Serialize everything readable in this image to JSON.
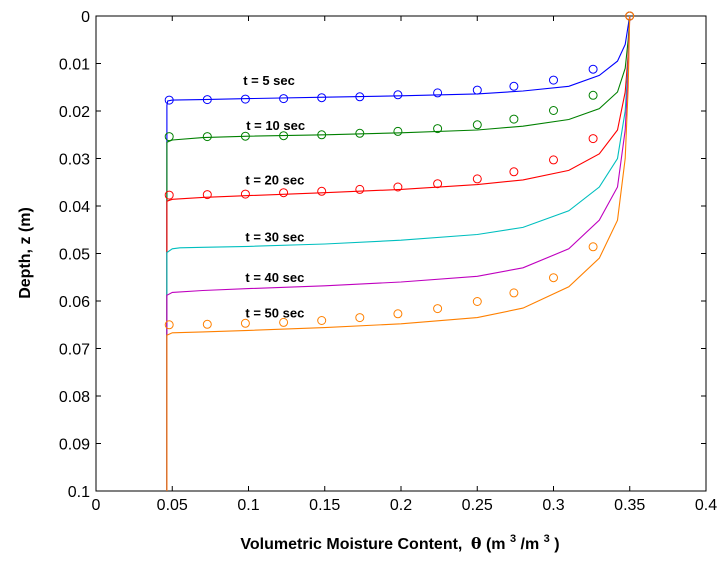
{
  "chart_data": {
    "type": "line",
    "title": "",
    "xlabel": "Volumetric Moisture Content,",
    "xlabel_theta": "θ",
    "xlabel_unit_open": " (m",
    "xlabel_sup1": "3",
    "xlabel_unit_mid": "/m",
    "xlabel_sup2": "3",
    "xlabel_close": ")",
    "ylabel": "Depth, z (m)",
    "xlim": [
      0,
      0.4
    ],
    "ylim": [
      0,
      0.1
    ],
    "y_reversed": true,
    "grid": false,
    "x_ticks": [
      0,
      0.05,
      0.1,
      0.15,
      0.2,
      0.25,
      0.3,
      0.35,
      0.4
    ],
    "x_tick_labels": [
      "0",
      "0.05",
      "0.1",
      "0.15",
      "0.2",
      "0.25",
      "0.3",
      "0.35",
      "0.4"
    ],
    "y_ticks": [
      0,
      0.01,
      0.02,
      0.03,
      0.04,
      0.05,
      0.06,
      0.07,
      0.08,
      0.09,
      0.1
    ],
    "y_tick_labels": [
      "0",
      "0.01",
      "0.02",
      "0.03",
      "0.04",
      "0.05",
      "0.06",
      "0.07",
      "0.08",
      "0.09",
      "0.1"
    ],
    "series": [
      {
        "name": "t =  5 sec",
        "color": "#0000ff",
        "curve": [
          [
            0.35,
            0
          ],
          [
            0.349,
            0.002
          ],
          [
            0.347,
            0.006
          ],
          [
            0.342,
            0.0095
          ],
          [
            0.33,
            0.0125
          ],
          [
            0.31,
            0.0148
          ],
          [
            0.28,
            0.0158
          ],
          [
            0.25,
            0.0164
          ],
          [
            0.2,
            0.0168
          ],
          [
            0.15,
            0.0171
          ],
          [
            0.1,
            0.0174
          ],
          [
            0.07,
            0.0176
          ],
          [
            0.05,
            0.0177
          ],
          [
            0.047,
            0.0179
          ],
          [
            0.0465,
            0.0188
          ],
          [
            0.0465,
            0.1
          ]
        ],
        "points": [
          [
            0.35,
            0
          ],
          [
            0.326,
            0.0112
          ],
          [
            0.3,
            0.0135
          ],
          [
            0.274,
            0.0148
          ],
          [
            0.25,
            0.0156
          ],
          [
            0.224,
            0.0162
          ],
          [
            0.198,
            0.0166
          ],
          [
            0.173,
            0.017
          ],
          [
            0.148,
            0.0172
          ],
          [
            0.123,
            0.0174
          ],
          [
            0.098,
            0.0175
          ],
          [
            0.073,
            0.0176
          ],
          [
            0.048,
            0.0177
          ]
        ]
      },
      {
        "name": "t = 10 sec",
        "color": "#008000",
        "curve": [
          [
            0.35,
            0
          ],
          [
            0.349,
            0.005
          ],
          [
            0.347,
            0.011
          ],
          [
            0.342,
            0.016
          ],
          [
            0.33,
            0.0195
          ],
          [
            0.31,
            0.0218
          ],
          [
            0.28,
            0.0232
          ],
          [
            0.25,
            0.024
          ],
          [
            0.2,
            0.0246
          ],
          [
            0.15,
            0.025
          ],
          [
            0.1,
            0.0253
          ],
          [
            0.07,
            0.0256
          ],
          [
            0.05,
            0.0261
          ],
          [
            0.0465,
            0.0266
          ],
          [
            0.0465,
            0.1
          ]
        ],
        "points": [
          [
            0.35,
            0
          ],
          [
            0.326,
            0.0167
          ],
          [
            0.3,
            0.0199
          ],
          [
            0.274,
            0.0217
          ],
          [
            0.25,
            0.0229
          ],
          [
            0.224,
            0.0237
          ],
          [
            0.198,
            0.0243
          ],
          [
            0.173,
            0.0247
          ],
          [
            0.148,
            0.025
          ],
          [
            0.123,
            0.0252
          ],
          [
            0.098,
            0.0253
          ],
          [
            0.073,
            0.0254
          ],
          [
            0.048,
            0.0254
          ]
        ]
      },
      {
        "name": "t = 20 sec",
        "color": "#ff0000",
        "curve": [
          [
            0.35,
            0
          ],
          [
            0.349,
            0.008
          ],
          [
            0.347,
            0.016
          ],
          [
            0.342,
            0.024
          ],
          [
            0.33,
            0.029
          ],
          [
            0.31,
            0.0325
          ],
          [
            0.28,
            0.0345
          ],
          [
            0.25,
            0.0355
          ],
          [
            0.2,
            0.0365
          ],
          [
            0.15,
            0.0372
          ],
          [
            0.1,
            0.0378
          ],
          [
            0.07,
            0.0382
          ],
          [
            0.05,
            0.0386
          ],
          [
            0.0465,
            0.039
          ],
          [
            0.0465,
            0.1
          ]
        ],
        "points": [
          [
            0.35,
            0
          ],
          [
            0.326,
            0.0258
          ],
          [
            0.3,
            0.0303
          ],
          [
            0.274,
            0.0328
          ],
          [
            0.25,
            0.0343
          ],
          [
            0.224,
            0.0353
          ],
          [
            0.198,
            0.036
          ],
          [
            0.173,
            0.0365
          ],
          [
            0.148,
            0.0369
          ],
          [
            0.123,
            0.0372
          ],
          [
            0.098,
            0.0375
          ],
          [
            0.073,
            0.0376
          ],
          [
            0.048,
            0.0377
          ]
        ]
      },
      {
        "name": "t = 30 sec",
        "color": "#00bfbf",
        "curve": [
          [
            0.35,
            0
          ],
          [
            0.349,
            0.01
          ],
          [
            0.347,
            0.02
          ],
          [
            0.342,
            0.03
          ],
          [
            0.33,
            0.036
          ],
          [
            0.31,
            0.041
          ],
          [
            0.28,
            0.0445
          ],
          [
            0.25,
            0.046
          ],
          [
            0.2,
            0.0472
          ],
          [
            0.15,
            0.048
          ],
          [
            0.1,
            0.0485
          ],
          [
            0.07,
            0.0487
          ],
          [
            0.055,
            0.0488
          ],
          [
            0.05,
            0.049
          ],
          [
            0.0465,
            0.0498
          ],
          [
            0.0465,
            0.1
          ]
        ],
        "points": []
      },
      {
        "name": "t = 40 sec",
        "color": "#bf00bf",
        "curve": [
          [
            0.35,
            0
          ],
          [
            0.349,
            0.012
          ],
          [
            0.347,
            0.024
          ],
          [
            0.342,
            0.036
          ],
          [
            0.33,
            0.043
          ],
          [
            0.31,
            0.049
          ],
          [
            0.28,
            0.053
          ],
          [
            0.25,
            0.0548
          ],
          [
            0.2,
            0.056
          ],
          [
            0.15,
            0.0568
          ],
          [
            0.1,
            0.0574
          ],
          [
            0.07,
            0.0578
          ],
          [
            0.05,
            0.0582
          ],
          [
            0.0465,
            0.0588
          ],
          [
            0.0465,
            0.1
          ]
        ],
        "points": []
      },
      {
        "name": "t = 50 sec",
        "color": "#ff8000",
        "curve": [
          [
            0.35,
            0
          ],
          [
            0.349,
            0.015
          ],
          [
            0.347,
            0.03
          ],
          [
            0.342,
            0.043
          ],
          [
            0.33,
            0.051
          ],
          [
            0.31,
            0.057
          ],
          [
            0.28,
            0.0615
          ],
          [
            0.25,
            0.0635
          ],
          [
            0.2,
            0.0648
          ],
          [
            0.15,
            0.0656
          ],
          [
            0.1,
            0.0662
          ],
          [
            0.07,
            0.0665
          ],
          [
            0.05,
            0.0667
          ],
          [
            0.0465,
            0.0672
          ],
          [
            0.0465,
            0.1
          ]
        ],
        "points": [
          [
            0.35,
            0
          ],
          [
            0.326,
            0.0486
          ],
          [
            0.3,
            0.0551
          ],
          [
            0.274,
            0.0583
          ],
          [
            0.25,
            0.0601
          ],
          [
            0.224,
            0.0616
          ],
          [
            0.198,
            0.0627
          ],
          [
            0.173,
            0.0635
          ],
          [
            0.148,
            0.0641
          ],
          [
            0.123,
            0.0645
          ],
          [
            0.098,
            0.0647
          ],
          [
            0.073,
            0.0649
          ],
          [
            0.048,
            0.065
          ]
        ]
      }
    ],
    "markers_color": "#a0522d",
    "annotations": [
      {
        "text": "t =  5 sec",
        "x": 0.0965,
        "y": 0.0145
      },
      {
        "text": "t = 10 sec",
        "x": 0.0985,
        "y": 0.024
      },
      {
        "text": "t = 20 sec",
        "x": 0.098,
        "y": 0.0355
      },
      {
        "text": "t = 30 sec",
        "x": 0.098,
        "y": 0.0475
      },
      {
        "text": "t = 40 sec",
        "x": 0.098,
        "y": 0.056
      },
      {
        "text": "t = 50 sec",
        "x": 0.098,
        "y": 0.0635
      }
    ]
  }
}
